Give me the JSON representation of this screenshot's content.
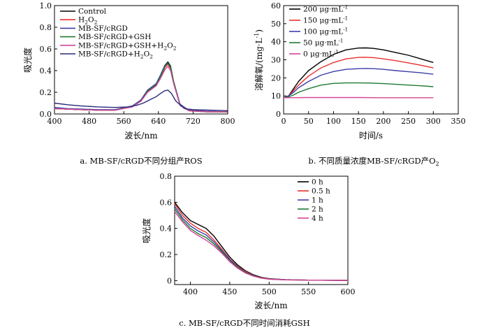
{
  "charts": [
    {
      "id": "a",
      "caption": "a.  MB-SF/cRGD不同分组产ROS",
      "xlabel": "波长/nm",
      "ylabel": "吸光度",
      "xlim": [
        400,
        800
      ],
      "ylim": [
        0.0,
        1.0
      ],
      "xticks": [
        400,
        480,
        560,
        640,
        720,
        800
      ],
      "yticks": [
        0.0,
        0.2,
        0.4,
        0.6,
        0.8,
        1.0
      ],
      "ytick_labels": [
        "0.0",
        "0.2",
        "0.4",
        "0.6",
        "0.8",
        "1.0"
      ],
      "legend": [
        {
          "label": "Control",
          "sub": "",
          "color": "#000000"
        },
        {
          "label": "H",
          "sub": "2",
          "tail": "O",
          "sub2": "2",
          "color": "#e8302e"
        },
        {
          "label": "MB-SF/cRGD",
          "sub": "",
          "color": "#3b3fa6"
        },
        {
          "label": "MB-SF/cRGD+GSH",
          "sub": "",
          "color": "#1d7a33"
        },
        {
          "label": "MB-SF/cRGD+GSH+H",
          "sub": "2",
          "tail": "O",
          "sub2": "2",
          "color": "#d7449a"
        },
        {
          "label": "MB-SF/cRGD+H",
          "sub": "2",
          "tail": "O",
          "sub2": "2",
          "color": "#2a2a7a"
        }
      ]
    },
    {
      "id": "b",
      "caption": "b.  不同质量浓度MB-SF/cRGD产O",
      "caption_sub": "2",
      "xlabel": "时间/s",
      "ylabel": "溶解氧/(mg·L",
      "ylabel_sup": "-1",
      "ylabel_tail": ")",
      "xlim": [
        0,
        350
      ],
      "ylim": [
        0,
        60
      ],
      "xticks": [
        0,
        50,
        100,
        150,
        200,
        250,
        300,
        350
      ],
      "yticks": [
        0,
        10,
        20,
        30,
        40,
        50,
        60
      ],
      "legend": [
        {
          "label": "200  μg·mL",
          "sup": "-1",
          "color": "#000000"
        },
        {
          "label": "150  μg·mL",
          "sup": "-1",
          "color": "#e8302e"
        },
        {
          "label": "100  μg·mL",
          "sup": "-1",
          "color": "#3b3fa6"
        },
        {
          "label": "50  μg·mL",
          "sup": "-1",
          "color": "#1d7a33"
        },
        {
          "label": "0  μg·mL",
          "sup": "-1",
          "color": "#d7449a"
        }
      ]
    },
    {
      "id": "c",
      "caption": "c.  MB-SF/cRGD不同时间消耗GSH",
      "xlabel": "波长/nm",
      "ylabel": "吸光度",
      "xlim": [
        380,
        600
      ],
      "ylim": [
        -0.03,
        0.8
      ],
      "xticks": [
        400,
        450,
        500,
        550,
        600
      ],
      "yticks": [
        0.0,
        0.2,
        0.4,
        0.6,
        0.8
      ],
      "ytick_labels": [
        "0",
        "0.2",
        "0.4",
        "0.6",
        "0.8"
      ],
      "legend": [
        {
          "label": "0 h",
          "color": "#000000"
        },
        {
          "label": "0.5 h",
          "color": "#e8302e"
        },
        {
          "label": "1 h",
          "color": "#3b3fa6"
        },
        {
          "label": "2 h",
          "color": "#1d7a33"
        },
        {
          "label": "4 h",
          "color": "#d7449a"
        }
      ]
    }
  ],
  "chart_data": [
    {
      "type": "line",
      "title": "a.  MB-SF/cRGD不同分组产ROS",
      "xlabel": "波长/nm",
      "ylabel": "吸光度",
      "xlim": [
        400,
        800
      ],
      "ylim": [
        0,
        1.0
      ],
      "legend_position": "top-left",
      "series": [
        {
          "name": "Control",
          "color": "#000000",
          "x": [
            400,
            430,
            460,
            500,
            540,
            580,
            600,
            615,
            625,
            635,
            645,
            655,
            662,
            668,
            675,
            690,
            710,
            750,
            800
          ],
          "y": [
            0.05,
            0.045,
            0.04,
            0.035,
            0.035,
            0.07,
            0.13,
            0.22,
            0.25,
            0.28,
            0.36,
            0.45,
            0.48,
            0.44,
            0.3,
            0.08,
            0.03,
            0.02,
            0.02
          ]
        },
        {
          "name": "H2O2",
          "color": "#e8302e",
          "x": [
            400,
            430,
            460,
            500,
            540,
            580,
            600,
            615,
            625,
            635,
            645,
            655,
            662,
            668,
            675,
            690,
            710,
            750,
            800
          ],
          "y": [
            0.05,
            0.045,
            0.04,
            0.035,
            0.035,
            0.07,
            0.12,
            0.21,
            0.24,
            0.27,
            0.34,
            0.43,
            0.46,
            0.42,
            0.29,
            0.08,
            0.03,
            0.02,
            0.02
          ]
        },
        {
          "name": "MB-SF/cRGD",
          "color": "#3b3fa6",
          "x": [
            400,
            430,
            460,
            500,
            540,
            580,
            600,
            615,
            625,
            635,
            645,
            655,
            662,
            668,
            675,
            690,
            710,
            750,
            800
          ],
          "y": [
            0.06,
            0.05,
            0.045,
            0.04,
            0.04,
            0.075,
            0.13,
            0.22,
            0.25,
            0.28,
            0.36,
            0.45,
            0.47,
            0.43,
            0.3,
            0.09,
            0.035,
            0.025,
            0.02
          ]
        },
        {
          "name": "MB-SF/cRGD+GSH",
          "color": "#1d7a33",
          "x": [
            400,
            430,
            460,
            500,
            540,
            580,
            600,
            615,
            625,
            635,
            645,
            655,
            662,
            668,
            675,
            690,
            710,
            750,
            800
          ],
          "y": [
            0.05,
            0.045,
            0.04,
            0.035,
            0.035,
            0.07,
            0.12,
            0.21,
            0.24,
            0.27,
            0.35,
            0.44,
            0.47,
            0.43,
            0.3,
            0.08,
            0.03,
            0.02,
            0.02
          ]
        },
        {
          "name": "MB-SF/cRGD+GSH+H2O2",
          "color": "#d7449a",
          "x": [
            400,
            430,
            460,
            500,
            540,
            580,
            600,
            615,
            625,
            635,
            645,
            655,
            662,
            668,
            675,
            690,
            710,
            750,
            800
          ],
          "y": [
            0.05,
            0.045,
            0.04,
            0.035,
            0.035,
            0.065,
            0.12,
            0.2,
            0.23,
            0.26,
            0.33,
            0.41,
            0.44,
            0.4,
            0.28,
            0.08,
            0.03,
            0.02,
            0.02
          ]
        },
        {
          "name": "MB-SF/cRGD+H2O2",
          "color": "#2a2a7a",
          "x": [
            400,
            430,
            460,
            500,
            540,
            570,
            590,
            605,
            620,
            635,
            645,
            655,
            662,
            670,
            680,
            700,
            720,
            760,
            800
          ],
          "y": [
            0.1,
            0.085,
            0.075,
            0.065,
            0.06,
            0.065,
            0.08,
            0.1,
            0.13,
            0.16,
            0.19,
            0.215,
            0.22,
            0.19,
            0.12,
            0.05,
            0.04,
            0.035,
            0.03
          ]
        }
      ]
    },
    {
      "type": "line",
      "title": "b.  不同质量浓度MB-SF/cRGD产O2",
      "xlabel": "时间/s",
      "ylabel": "溶解氧/(mg·L-1)",
      "xlim": [
        0,
        350
      ],
      "ylim": [
        0,
        60
      ],
      "legend_position": "top-left",
      "series": [
        {
          "name": "200 μg·mL-1",
          "color": "#000000",
          "x": [
            0,
            10,
            20,
            30,
            50,
            75,
            100,
            125,
            150,
            165,
            180,
            200,
            225,
            250,
            275,
            300
          ],
          "y": [
            9,
            10,
            14,
            18,
            24,
            29,
            33,
            35.5,
            36.5,
            36.6,
            36.3,
            35.5,
            34,
            32.5,
            30.5,
            28.5
          ]
        },
        {
          "name": "150 μg·mL-1",
          "color": "#e8302e",
          "x": [
            0,
            10,
            20,
            30,
            50,
            75,
            100,
            125,
            150,
            165,
            180,
            200,
            225,
            250,
            275,
            300
          ],
          "y": [
            9,
            10,
            13,
            16,
            21,
            25.5,
            28.5,
            30.5,
            31.3,
            31.4,
            31.2,
            30.5,
            29.5,
            28.3,
            27,
            25.5
          ]
        },
        {
          "name": "100 μg·mL-1",
          "color": "#3b3fa6",
          "x": [
            0,
            10,
            20,
            30,
            50,
            75,
            100,
            125,
            150,
            165,
            180,
            200,
            225,
            250,
            275,
            300
          ],
          "y": [
            9,
            10,
            12,
            14.5,
            18,
            21.5,
            23.5,
            24.7,
            25.1,
            25.2,
            25.1,
            24.7,
            24,
            23.4,
            22.8,
            22
          ]
        },
        {
          "name": "50 μg·mL-1",
          "color": "#1d7a33",
          "x": [
            0,
            10,
            20,
            30,
            50,
            75,
            100,
            125,
            150,
            175,
            200,
            225,
            250,
            275,
            300
          ],
          "y": [
            9,
            9.5,
            10.5,
            12,
            14,
            16,
            16.9,
            17.2,
            17.2,
            17.1,
            16.8,
            16.4,
            16,
            15.6,
            15.1
          ]
        },
        {
          "name": "0 μg·mL-1",
          "color": "#d7449a",
          "x": [
            0,
            50,
            100,
            150,
            200,
            250,
            300
          ],
          "y": [
            9,
            9.1,
            9.1,
            9.1,
            9.0,
            9.0,
            9.0
          ]
        }
      ]
    },
    {
      "type": "line",
      "title": "c.  MB-SF/cRGD不同时间消耗GSH",
      "xlabel": "波长/nm",
      "ylabel": "吸光度",
      "xlim": [
        380,
        600
      ],
      "ylim": [
        -0.03,
        0.8
      ],
      "legend_position": "top-right",
      "series": [
        {
          "name": "0 h",
          "color": "#000000",
          "x": [
            380,
            390,
            400,
            410,
            420,
            430,
            440,
            450,
            460,
            470,
            480,
            490,
            500,
            520,
            550,
            600
          ],
          "y": [
            0.6,
            0.52,
            0.46,
            0.43,
            0.4,
            0.34,
            0.26,
            0.18,
            0.12,
            0.075,
            0.045,
            0.025,
            0.015,
            0.008,
            0.004,
            0.002
          ]
        },
        {
          "name": "0.5 h",
          "color": "#e8302e",
          "x": [
            380,
            390,
            400,
            410,
            420,
            430,
            440,
            450,
            460,
            470,
            480,
            490,
            500,
            520,
            550,
            600
          ],
          "y": [
            0.59,
            0.5,
            0.44,
            0.4,
            0.37,
            0.31,
            0.24,
            0.165,
            0.11,
            0.07,
            0.04,
            0.022,
            0.013,
            0.007,
            0.004,
            0.002
          ]
        },
        {
          "name": "1 h",
          "color": "#3b3fa6",
          "x": [
            380,
            390,
            400,
            410,
            420,
            430,
            440,
            450,
            460,
            470,
            480,
            490,
            500,
            520,
            550,
            600
          ],
          "y": [
            0.57,
            0.48,
            0.42,
            0.38,
            0.35,
            0.295,
            0.23,
            0.16,
            0.105,
            0.065,
            0.038,
            0.021,
            0.012,
            0.007,
            0.004,
            0.002
          ]
        },
        {
          "name": "2 h",
          "color": "#1d7a33",
          "x": [
            380,
            390,
            400,
            410,
            420,
            430,
            440,
            450,
            460,
            470,
            480,
            490,
            500,
            520,
            550,
            600
          ],
          "y": [
            0.55,
            0.465,
            0.4,
            0.36,
            0.33,
            0.28,
            0.22,
            0.15,
            0.1,
            0.062,
            0.036,
            0.02,
            0.012,
            0.006,
            0.004,
            0.002
          ]
        },
        {
          "name": "4 h",
          "color": "#d7449a",
          "x": [
            380,
            390,
            400,
            410,
            420,
            430,
            440,
            450,
            460,
            470,
            480,
            490,
            500,
            520,
            550,
            600
          ],
          "y": [
            0.53,
            0.45,
            0.385,
            0.345,
            0.31,
            0.265,
            0.21,
            0.145,
            0.095,
            0.058,
            0.034,
            0.019,
            0.011,
            0.006,
            0.004,
            0.002
          ]
        }
      ]
    }
  ]
}
